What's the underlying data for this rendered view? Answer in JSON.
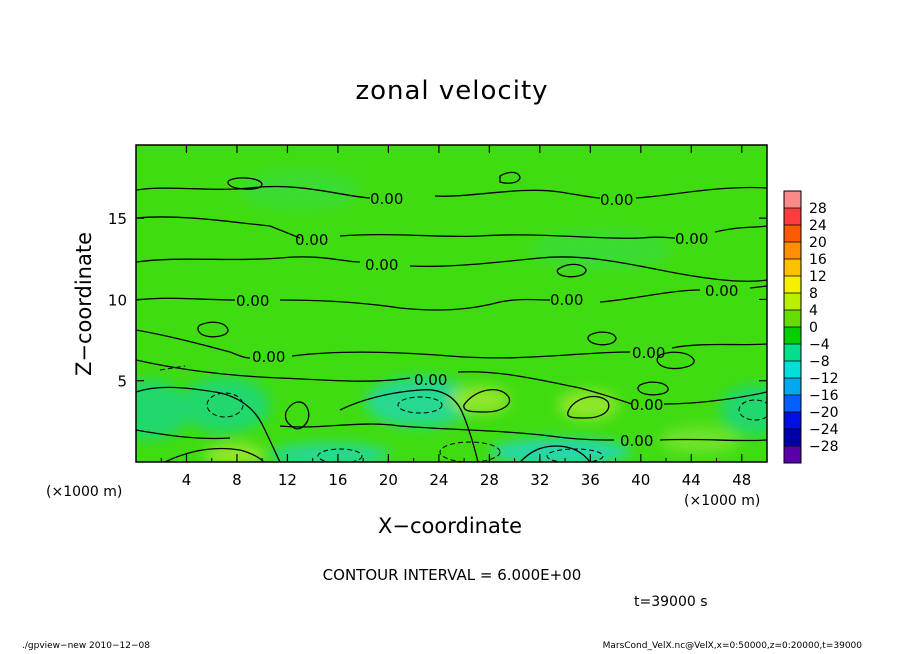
{
  "chart_data": {
    "type": "heatmap",
    "title": "zonal velocity",
    "xlabel": "X−coordinate",
    "ylabel": "Z−coordinate",
    "x_unit_label_left": "(×1000 m)",
    "x_unit_label_right": "(×1000 m)",
    "xlim": [
      0,
      50
    ],
    "ylim": [
      0,
      19.5
    ],
    "x_ticks": [
      4,
      8,
      12,
      16,
      20,
      24,
      28,
      32,
      36,
      40,
      44,
      48
    ],
    "y_ticks": [
      5,
      10,
      15
    ],
    "colorbar": {
      "labels": [
        "28",
        "24",
        "20",
        "16",
        "12",
        "8",
        "4",
        "0",
        "−4",
        "−8",
        "−12",
        "−16",
        "−20",
        "−24",
        "−28"
      ],
      "colors": [
        "#f98a8a",
        "#ff3d3d",
        "#ff5a00",
        "#ff8e00",
        "#ffc000",
        "#f5f000",
        "#b8f000",
        "#66dd00",
        "#00d000",
        "#00e08a",
        "#00e0d8",
        "#00a8f0",
        "#0060ff",
        "#0010e0",
        "#0000a8",
        "#5a00a8"
      ]
    },
    "contour_labels": [
      "0.00",
      "0.00",
      "0.00",
      "0.00",
      "0.00",
      "0.00",
      "0.00",
      "0.00",
      "0.00",
      "0.00",
      "0.00",
      "0.00"
    ],
    "contour_interval_text": "CONTOUR INTERVAL = 6.000E+00",
    "time_text": "t=39000  s"
  },
  "footer": {
    "left": "./gpview−new   2010−12−08",
    "right": "MarsCond_VelX.nc@VelX,x=0:50000,z=0:20000,t=39000"
  }
}
